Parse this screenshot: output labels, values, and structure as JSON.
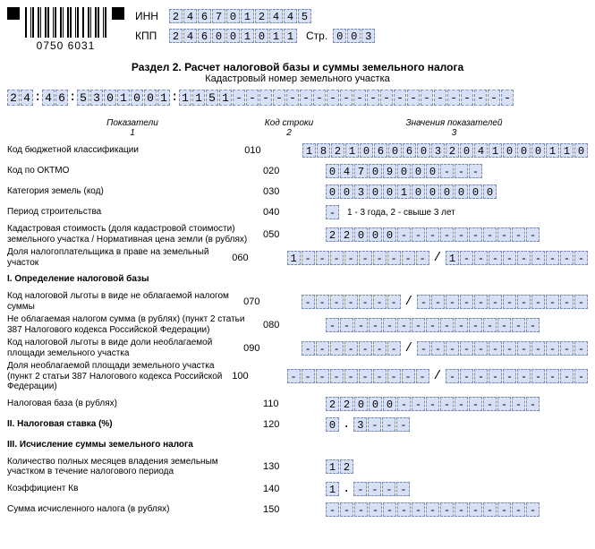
{
  "header": {
    "barcode_number": "0750 6031",
    "inn_label": "ИНН",
    "inn": [
      "2",
      "4",
      "6",
      "7",
      "0",
      "1",
      "2",
      "4",
      "4",
      "5"
    ],
    "kpp_label": "КПП",
    "kpp": [
      "2",
      "4",
      "6",
      "0",
      "0",
      "1",
      "0",
      "1",
      "1"
    ],
    "page_label": "Стр.",
    "page": [
      "0",
      "0",
      "3"
    ]
  },
  "section": {
    "title": "Раздел 2. Расчет налоговой базы и суммы земельного налога",
    "subtitle": "Кадастровый номер земельного участка",
    "cadastral": [
      "2",
      "4",
      ":",
      "4",
      "6",
      ":",
      "5",
      "3",
      "0",
      "1",
      "0",
      "0",
      "1",
      ":",
      "1",
      "1",
      "5",
      "1",
      "-",
      "-",
      "-",
      "-",
      "-",
      "-",
      "-",
      "-",
      "-",
      "-",
      "-",
      "-",
      "-",
      "-",
      "-",
      "-",
      "-",
      "-",
      "-",
      "-",
      "-"
    ]
  },
  "columns": {
    "c1": "Показатели\n1",
    "c2": "Код строки\n2",
    "c3": "Значения показателей\n3"
  },
  "rows": [
    {
      "label": "Код бюджетной классификации",
      "code": "010",
      "cells": [
        "1",
        "8",
        "2",
        "1",
        "0",
        "6",
        "0",
        "6",
        "0",
        "3",
        "2",
        "0",
        "4",
        "1",
        "0",
        "0",
        "0",
        "1",
        "1",
        "0"
      ]
    },
    {
      "label": "Код по ОКТМО",
      "code": "020",
      "cells": [
        "0",
        "4",
        "7",
        "0",
        "9",
        "0",
        "0",
        "0",
        "-",
        "-",
        "-"
      ]
    },
    {
      "label": "Категория земель (код)",
      "code": "030",
      "cells": [
        "0",
        "0",
        "3",
        "0",
        "0",
        "1",
        "0",
        "0",
        "0",
        "0",
        "0",
        "0"
      ]
    },
    {
      "label": "Период строительства",
      "code": "040",
      "cells": [
        "-"
      ],
      "note": "1 - 3 года, 2 - свыше 3 лет"
    },
    {
      "label": "Кадастровая стоимость (доля кадастровой стоимости) земельного участка / Нормативная цена земли (в рублях)",
      "code": "050",
      "cells": [
        "2",
        "2",
        "0",
        "0",
        "0",
        "-",
        "-",
        "-",
        "-",
        "-",
        "-",
        "-",
        "-",
        "-",
        "-"
      ]
    },
    {
      "label": "Доля налогоплательщика в праве на земельный участок",
      "code": "060",
      "frac": {
        "num": [
          "1",
          "-",
          "-",
          "-",
          "-",
          "-",
          "-",
          "-",
          "-",
          "-"
        ],
        "den": [
          "1",
          "-",
          "-",
          "-",
          "-",
          "-",
          "-",
          "-",
          "-",
          "-"
        ]
      }
    },
    {
      "label": "I. Определение налоговой базы",
      "bold": true
    },
    {
      "label": "Код налоговой льготы в виде не облагаемой налогом суммы",
      "code": "070",
      "frac": {
        "num": [
          "-",
          "-",
          "-",
          "-",
          "-",
          "-",
          "-"
        ],
        "den": [
          "-",
          "-",
          "-",
          "-",
          "-",
          "-",
          "-",
          "-",
          "-",
          "-",
          "-",
          "-"
        ]
      }
    },
    {
      "label": "Не облагаемая налогом сумма (в рублях) (пункт 2 статьи 387 Налогового кодекса Российской Федерации)",
      "code": "080",
      "cells": [
        "-",
        "-",
        "-",
        "-",
        "-",
        "-",
        "-",
        "-",
        "-",
        "-",
        "-",
        "-",
        "-",
        "-",
        "-"
      ]
    },
    {
      "label": "Код налоговой льготы в виде доли необлагаемой площади земельного участка",
      "code": "090",
      "frac": {
        "num": [
          "-",
          "-",
          "-",
          "-",
          "-",
          "-",
          "-"
        ],
        "den": [
          "-",
          "-",
          "-",
          "-",
          "-",
          "-",
          "-",
          "-",
          "-",
          "-",
          "-",
          "-"
        ]
      }
    },
    {
      "label": "Доля необлагаемой площади земельного участка (пункт 2 статьи 387 Налогового кодекса Российской Федерации)",
      "code": "100",
      "frac": {
        "num": [
          "-",
          "-",
          "-",
          "-",
          "-",
          "-",
          "-",
          "-",
          "-",
          "-"
        ],
        "den": [
          "-",
          "-",
          "-",
          "-",
          "-",
          "-",
          "-",
          "-",
          "-",
          "-"
        ]
      }
    },
    {
      "label": "Налоговая база (в рублях)",
      "code": "110",
      "cells": [
        "2",
        "2",
        "0",
        "0",
        "0",
        "-",
        "-",
        "-",
        "-",
        "-",
        "-",
        "-",
        "-",
        "-",
        "-"
      ]
    },
    {
      "label": "II. Налоговая ставка (%)",
      "bold": true,
      "code": "120",
      "decimal": {
        "int": [
          "0"
        ],
        "frac": [
          "3",
          "-",
          "-",
          "-"
        ]
      }
    },
    {
      "label": "III. Исчисление суммы земельного налога",
      "bold": true
    },
    {
      "label": "Количество полных месяцев владения земельным участком в течение налогового периода",
      "code": "130",
      "cells": [
        "1",
        "2"
      ]
    },
    {
      "label": "Коэффициент Кв",
      "code": "140",
      "decimal": {
        "int": [
          "1"
        ],
        "frac": [
          "-",
          "-",
          "-",
          "-"
        ]
      }
    },
    {
      "label": "Сумма исчисленного налога (в рублях)",
      "code": "150",
      "cells": [
        "-",
        "-",
        "-",
        "-",
        "-",
        "-",
        "-",
        "-",
        "-",
        "-",
        "-",
        "-",
        "-",
        "-",
        "-"
      ]
    }
  ]
}
